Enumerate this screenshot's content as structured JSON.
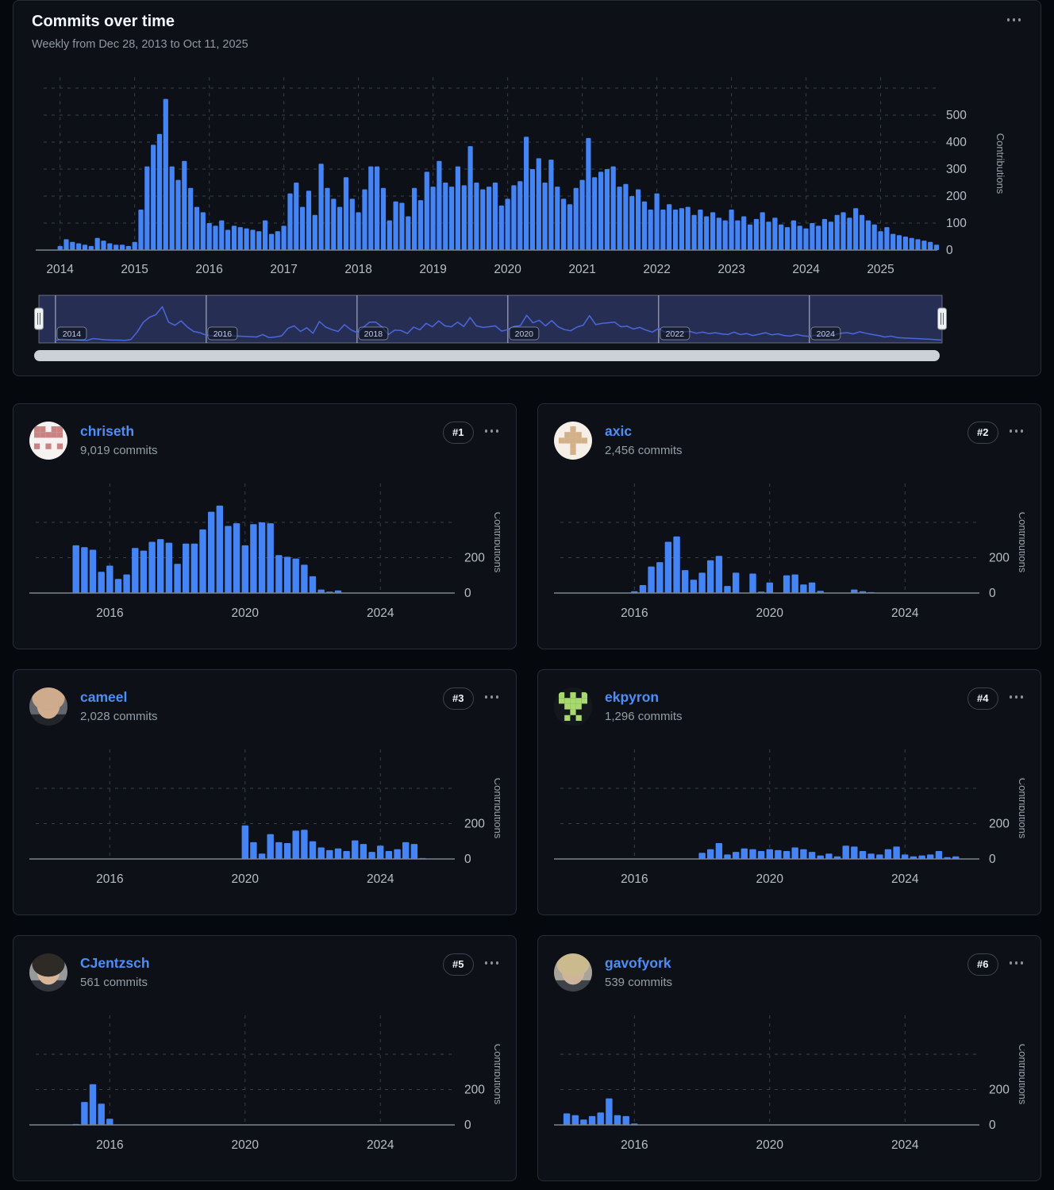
{
  "colors": {
    "bar": "#4584f4",
    "minimap_line": "#4a67dd",
    "minimap_fill": "#272e54",
    "link": "#4e8ef7",
    "scrollbar": "#ccd1d7",
    "grid": "#39414b",
    "axis": "#7d848d",
    "tick_text": "#b7bec8",
    "ylabel_text": "#98a0aa"
  },
  "header": {
    "title": "Commits over time",
    "subtitle": "Weekly from Dec 28, 2013 to Oct 11, 2025"
  },
  "minimap": {
    "years": [
      "2014",
      "2016",
      "2018",
      "2020",
      "2022",
      "2024"
    ]
  },
  "contributors": [
    {
      "name": "chriseth",
      "commits": "9,019 commits",
      "rank": "#1",
      "chart": "chriseth",
      "avatar": {
        "kind": "identicon",
        "bg": "#f7f2f2",
        "fg": "#c98383",
        "cells": [
          1,
          1,
          0,
          1,
          1,
          1,
          1,
          1,
          1,
          1,
          0,
          0,
          0,
          0,
          0,
          1,
          0,
          1,
          0,
          1,
          0,
          0,
          0,
          0,
          0
        ]
      }
    },
    {
      "name": "axic",
      "commits": "2,456 commits",
      "rank": "#2",
      "chart": "axic",
      "avatar": {
        "kind": "identicon",
        "bg": "#f5efe8",
        "fg": "#d2b088",
        "cells": [
          0,
          0,
          1,
          0,
          0,
          0,
          1,
          1,
          1,
          0,
          1,
          1,
          1,
          1,
          1,
          0,
          0,
          1,
          0,
          0,
          0,
          0,
          1,
          0,
          0
        ]
      }
    },
    {
      "name": "cameel",
      "commits": "2,028 commits",
      "rank": "#3",
      "chart": "cameel",
      "avatar": {
        "kind": "photo",
        "bg": "#63676d",
        "skin": "#d2ae8e",
        "hair": "#cfab8d",
        "shirt": "#22252a"
      }
    },
    {
      "name": "ekpyron",
      "commits": "1,296 commits",
      "rank": "#4",
      "chart": "ekpyron",
      "avatar": {
        "kind": "identicon",
        "bg": "#14181d",
        "fg": "#a8d96e",
        "cells": [
          1,
          0,
          1,
          0,
          1,
          1,
          1,
          1,
          1,
          1,
          0,
          1,
          1,
          1,
          0,
          0,
          0,
          1,
          0,
          0,
          0,
          1,
          0,
          1,
          0
        ]
      }
    },
    {
      "name": "CJentzsch",
      "commits": "561 commits",
      "rank": "#5",
      "chart": "cjentzsch",
      "avatar": {
        "kind": "photo",
        "bg": "#97999b",
        "skin": "#d9b696",
        "hair": "#2e2a26",
        "shirt": "#33373d"
      }
    },
    {
      "name": "gavofyork",
      "commits": "539 commits",
      "rank": "#6",
      "chart": "gavofyork",
      "avatar": {
        "kind": "photo",
        "bg": "#a8a49c",
        "skin": "#cfb49c",
        "hair": "#cbba8e",
        "shirt": "#3f4246"
      }
    }
  ],
  "chart_data": [
    {
      "id": "main",
      "type": "bar",
      "title": "Commits over time",
      "subtitle": "Weekly from Dec 28, 2013 to Oct 11, 2025",
      "ylabel": "Contributions",
      "x_start": 2014.0,
      "x_step": 0.08333,
      "x_ticks": [
        2014,
        2015,
        2016,
        2017,
        2018,
        2019,
        2020,
        2021,
        2022,
        2023,
        2024,
        2025
      ],
      "y_ticks": [
        0,
        100,
        200,
        300,
        400,
        500
      ],
      "y_grid": [
        100,
        200,
        300,
        400,
        500,
        600
      ],
      "ylim": [
        0,
        640
      ],
      "grid": true,
      "legend": "none",
      "values": [
        15,
        40,
        30,
        25,
        20,
        15,
        45,
        35,
        25,
        20,
        20,
        15,
        30,
        150,
        310,
        390,
        430,
        560,
        310,
        260,
        330,
        230,
        160,
        140,
        100,
        90,
        110,
        75,
        90,
        85,
        80,
        75,
        70,
        110,
        60,
        70,
        90,
        210,
        250,
        160,
        220,
        130,
        320,
        230,
        190,
        160,
        270,
        190,
        140,
        225,
        310,
        310,
        230,
        110,
        180,
        175,
        125,
        230,
        185,
        290,
        235,
        330,
        250,
        235,
        310,
        240,
        385,
        250,
        225,
        235,
        250,
        165,
        190,
        240,
        255,
        420,
        300,
        340,
        250,
        335,
        235,
        190,
        170,
        230,
        260,
        415,
        270,
        290,
        300,
        310,
        235,
        245,
        200,
        225,
        180,
        150,
        210,
        150,
        170,
        150,
        155,
        160,
        130,
        150,
        125,
        140,
        120,
        110,
        150,
        110,
        125,
        95,
        115,
        140,
        105,
        120,
        95,
        85,
        110,
        90,
        80,
        100,
        90,
        115,
        105,
        130,
        140,
        120,
        155,
        130,
        110,
        95,
        70,
        85,
        60,
        55,
        50,
        45,
        40,
        35,
        30,
        20
      ]
    },
    {
      "id": "chriseth",
      "type": "bar",
      "ylabel": "Contributions",
      "x_start": 2015.0,
      "x_step": 0.25,
      "x_ticks": [
        2016,
        2020,
        2024
      ],
      "y_ticks": [
        0,
        200
      ],
      "y_grid": [
        200,
        400
      ],
      "ylim": [
        0,
        620
      ],
      "grid": true,
      "values": [
        270,
        260,
        245,
        120,
        155,
        80,
        105,
        255,
        240,
        290,
        305,
        285,
        165,
        280,
        280,
        360,
        460,
        495,
        380,
        395,
        270,
        390,
        400,
        395,
        215,
        205,
        195,
        160,
        95,
        20,
        8,
        15
      ]
    },
    {
      "id": "axic",
      "type": "bar",
      "ylabel": "Contributions",
      "x_start": 2016.0,
      "x_step": 0.25,
      "x_ticks": [
        2016,
        2020,
        2024
      ],
      "y_ticks": [
        0,
        200
      ],
      "y_grid": [
        200,
        400
      ],
      "ylim": [
        0,
        620
      ],
      "grid": true,
      "values": [
        10,
        45,
        150,
        175,
        290,
        320,
        130,
        75,
        115,
        185,
        210,
        40,
        115,
        0,
        110,
        8,
        60,
        0,
        100,
        105,
        48,
        60,
        12,
        0,
        0,
        0,
        20,
        10,
        5
      ]
    },
    {
      "id": "cameel",
      "type": "bar",
      "ylabel": "Contributions",
      "x_start": 2020.0,
      "x_step": 0.25,
      "x_ticks": [
        2016,
        2020,
        2024
      ],
      "y_ticks": [
        0,
        200
      ],
      "y_grid": [
        200,
        400
      ],
      "ylim": [
        0,
        620
      ],
      "grid": true,
      "values": [
        190,
        95,
        30,
        140,
        95,
        90,
        160,
        165,
        100,
        65,
        50,
        60,
        45,
        105,
        85,
        40,
        75,
        45,
        55,
        95,
        85,
        5
      ]
    },
    {
      "id": "ekpyron",
      "type": "bar",
      "ylabel": "Contributions",
      "x_start": 2018.0,
      "x_step": 0.25,
      "x_ticks": [
        2016,
        2020,
        2024
      ],
      "y_ticks": [
        0,
        200
      ],
      "y_grid": [
        200,
        400
      ],
      "ylim": [
        0,
        620
      ],
      "grid": true,
      "values": [
        35,
        55,
        90,
        25,
        40,
        60,
        55,
        45,
        55,
        50,
        45,
        65,
        55,
        40,
        20,
        30,
        15,
        75,
        70,
        45,
        30,
        25,
        55,
        70,
        25,
        15,
        20,
        25,
        45,
        10,
        15
      ]
    },
    {
      "id": "cjentzsch",
      "type": "bar",
      "ylabel": "Contributions",
      "x_start": 2015.0,
      "x_step": 0.25,
      "x_ticks": [
        2016,
        2020,
        2024
      ],
      "y_ticks": [
        0,
        200
      ],
      "y_grid": [
        200,
        400
      ],
      "ylim": [
        0,
        620
      ],
      "grid": true,
      "values": [
        5,
        130,
        230,
        120,
        35
      ]
    },
    {
      "id": "gavofyork",
      "type": "bar",
      "ylabel": "Contributions",
      "x_start": 2014.0,
      "x_step": 0.25,
      "x_ticks": [
        2016,
        2020,
        2024
      ],
      "y_ticks": [
        0,
        200
      ],
      "y_grid": [
        200,
        400
      ],
      "ylim": [
        0,
        620
      ],
      "grid": true,
      "values": [
        65,
        55,
        30,
        50,
        70,
        150,
        55,
        50,
        8
      ]
    }
  ]
}
